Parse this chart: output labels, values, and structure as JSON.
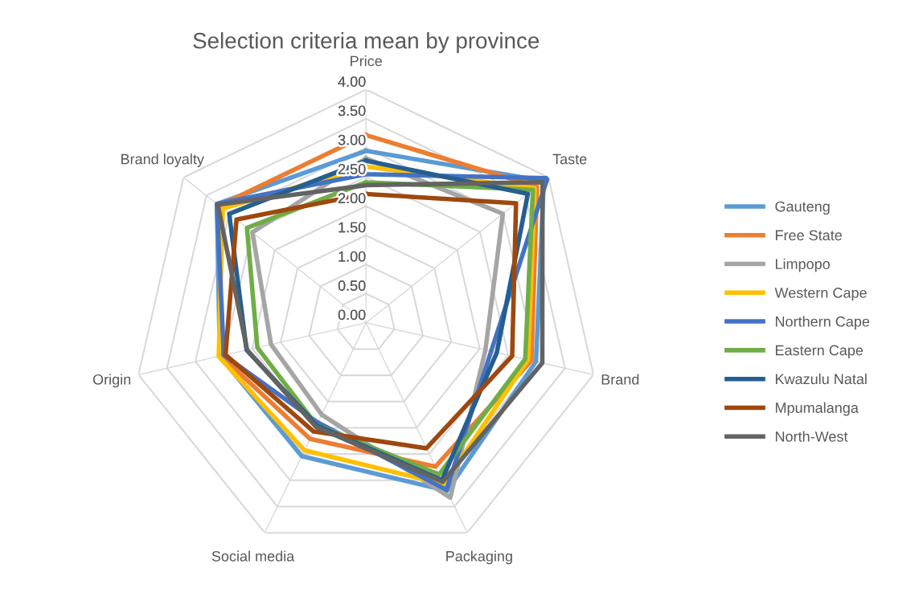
{
  "chart_data": {
    "type": "radar",
    "title": "Selection criteria mean by province",
    "categories": [
      "Price",
      "Taste",
      "Brand",
      "Packaging",
      "Social media",
      "Origin",
      "Brand loyalty"
    ],
    "ylim": [
      0,
      4
    ],
    "yticks": [
      {
        "value": 0,
        "label": "0.00"
      },
      {
        "value": 0.5,
        "label": "0.50"
      },
      {
        "value": 1,
        "label": "1.00"
      },
      {
        "value": 1.5,
        "label": "1.50"
      },
      {
        "value": 2,
        "label": "2.00"
      },
      {
        "value": 2.5,
        "label": "2.50"
      },
      {
        "value": 3,
        "label": "3.00"
      },
      {
        "value": 3.5,
        "label": "3.50"
      },
      {
        "value": 4,
        "label": "4.00"
      }
    ],
    "grid": true,
    "legend": "right",
    "marker": "none",
    "series": [
      {
        "name": "Gauteng",
        "color": "#5b9bd5",
        "values": [
          2.95,
          3.9,
          2.99,
          3.2,
          2.54,
          2.57,
          3.27
        ]
      },
      {
        "name": "Free State",
        "color": "#ed7d31",
        "values": [
          3.22,
          3.75,
          2.91,
          2.74,
          2.21,
          2.55,
          3.22
        ]
      },
      {
        "name": "Limpopo",
        "color": "#a5a5a5",
        "values": [
          2.82,
          3.0,
          2.1,
          3.33,
          1.75,
          1.67,
          2.49
        ]
      },
      {
        "name": "Western Cape",
        "color": "#ffc000",
        "values": [
          2.68,
          3.7,
          2.85,
          3.07,
          2.43,
          2.59,
          3.14
        ]
      },
      {
        "name": "Northern Cape",
        "color": "#4472c4",
        "values": [
          2.55,
          3.98,
          2.2,
          3.18,
          1.9,
          2.5,
          3.27
        ]
      },
      {
        "name": "Eastern Cape",
        "color": "#70ad47",
        "values": [
          2.41,
          3.66,
          2.8,
          2.89,
          1.95,
          1.91,
          2.61
        ]
      },
      {
        "name": "Kwazulu Natal",
        "color": "#255e91",
        "values": [
          2.78,
          3.55,
          2.3,
          3.0,
          1.95,
          2.1,
          3.0
        ]
      },
      {
        "name": "Mpumalanga",
        "color": "#9e480e",
        "values": [
          2.21,
          3.29,
          2.57,
          2.39,
          2.07,
          2.47,
          2.84
        ]
      },
      {
        "name": "North-West",
        "color": "#636363",
        "values": [
          2.36,
          3.87,
          3.1,
          3.03,
          1.98,
          2.09,
          3.25
        ]
      }
    ]
  }
}
